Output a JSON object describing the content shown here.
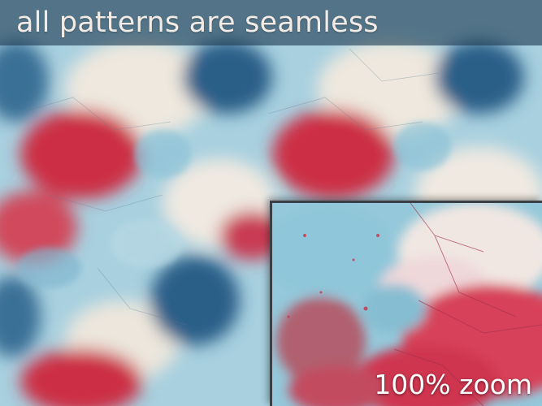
{
  "banner": {
    "text": "all patterns are seamless"
  },
  "zoom": {
    "label": "100% zoom"
  },
  "colors": {
    "blue_light": "#9ccbdc",
    "blue_dark": "#2a6189",
    "red": "#cf2f47",
    "cream": "#efe9e1",
    "banner_bg": "#1e3c52"
  }
}
